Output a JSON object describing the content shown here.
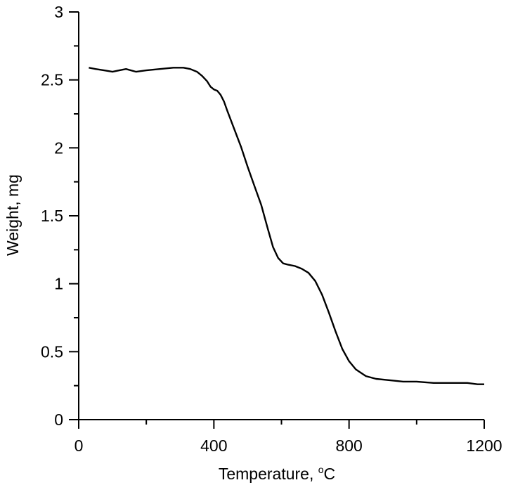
{
  "chart_data": {
    "type": "line",
    "title": "",
    "xlabel": "Temperature, ",
    "xlabel_unit_sup": "o",
    "xlabel_unit": "C",
    "ylabel": "Weight, mg",
    "xlim": [
      0,
      1200
    ],
    "ylim": [
      0,
      3
    ],
    "xticks": [
      0,
      400,
      800,
      1200
    ],
    "xtick_labels": [
      "0",
      "400",
      "800",
      "1200"
    ],
    "xminor": [
      200,
      600,
      1000
    ],
    "yticks": [
      0,
      0.5,
      1,
      1.5,
      2,
      2.5,
      3
    ],
    "ytick_labels": [
      "0",
      "0.5",
      "1",
      "1.5",
      "2",
      "2.5",
      "3"
    ],
    "yminor": [
      0.25,
      0.75,
      1.25,
      1.75,
      2.25,
      2.75
    ],
    "grid": false,
    "legend": "none",
    "line_color": "#000000",
    "series": [
      {
        "x": [
          30,
          50,
          75,
          100,
          120,
          140,
          170,
          200,
          240,
          280,
          310,
          330,
          350,
          365,
          380,
          390,
          400,
          410,
          420,
          430,
          440,
          460,
          480,
          500,
          520,
          540,
          560,
          575,
          590,
          605,
          620,
          640,
          660,
          680,
          700,
          720,
          740,
          760,
          780,
          800,
          820,
          850,
          880,
          920,
          960,
          1000,
          1050,
          1100,
          1150,
          1180,
          1200
        ],
        "y": [
          2.59,
          2.58,
          2.57,
          2.56,
          2.57,
          2.58,
          2.56,
          2.57,
          2.58,
          2.59,
          2.59,
          2.58,
          2.56,
          2.53,
          2.49,
          2.45,
          2.43,
          2.42,
          2.39,
          2.34,
          2.27,
          2.14,
          2.01,
          1.86,
          1.72,
          1.58,
          1.4,
          1.27,
          1.19,
          1.15,
          1.14,
          1.13,
          1.11,
          1.08,
          1.02,
          0.92,
          0.79,
          0.65,
          0.52,
          0.43,
          0.37,
          0.32,
          0.3,
          0.29,
          0.28,
          0.28,
          0.27,
          0.27,
          0.27,
          0.26,
          0.26
        ]
      }
    ]
  }
}
